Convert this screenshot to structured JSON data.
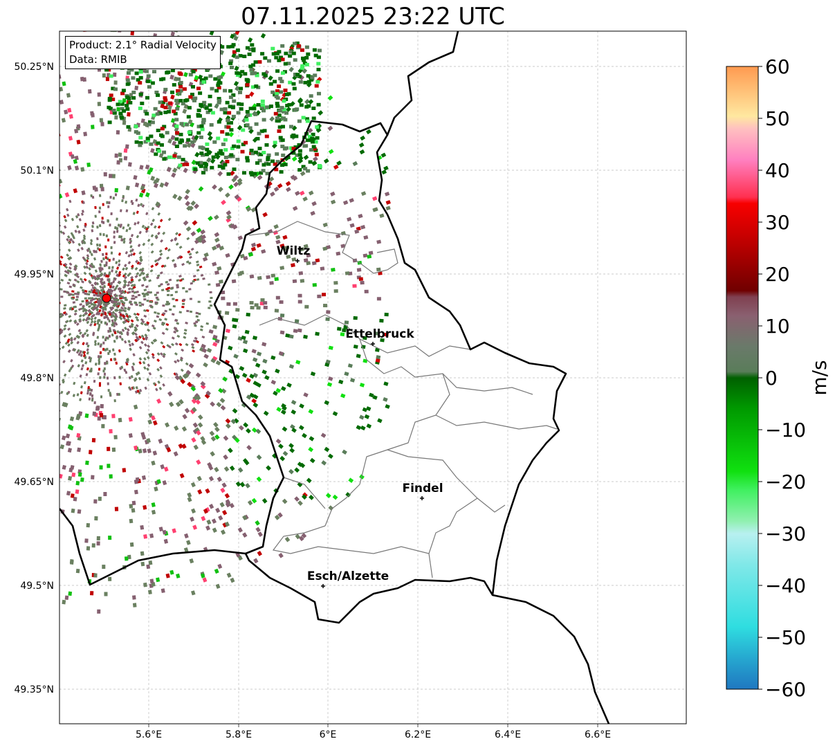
{
  "title": "07.11.2025 23:22 UTC",
  "info": {
    "product": "Product: 2.1° Radial Velocity",
    "data": "Data: RMIB"
  },
  "lat_ticks": [
    "50.25°N",
    "50.1°N",
    "49.95°N",
    "49.8°N",
    "49.65°N",
    "49.5°N",
    "49.35°N"
  ],
  "lon_ticks": [
    "5.6°E",
    "5.8°E",
    "6°E",
    "6.2°E",
    "6.4°E",
    "6.6°E"
  ],
  "cities": [
    {
      "name": "Wiltz"
    },
    {
      "name": "Ettelbruck"
    },
    {
      "name": "Findel"
    },
    {
      "name": "Esch/Alzette"
    }
  ],
  "colorbar": {
    "label": "m/s",
    "ticks": [
      "60",
      "50",
      "40",
      "30",
      "20",
      "10",
      "0",
      "−10",
      "−20",
      "−30",
      "−40",
      "−50",
      "−60"
    ],
    "range": [
      -60,
      60
    ]
  }
}
